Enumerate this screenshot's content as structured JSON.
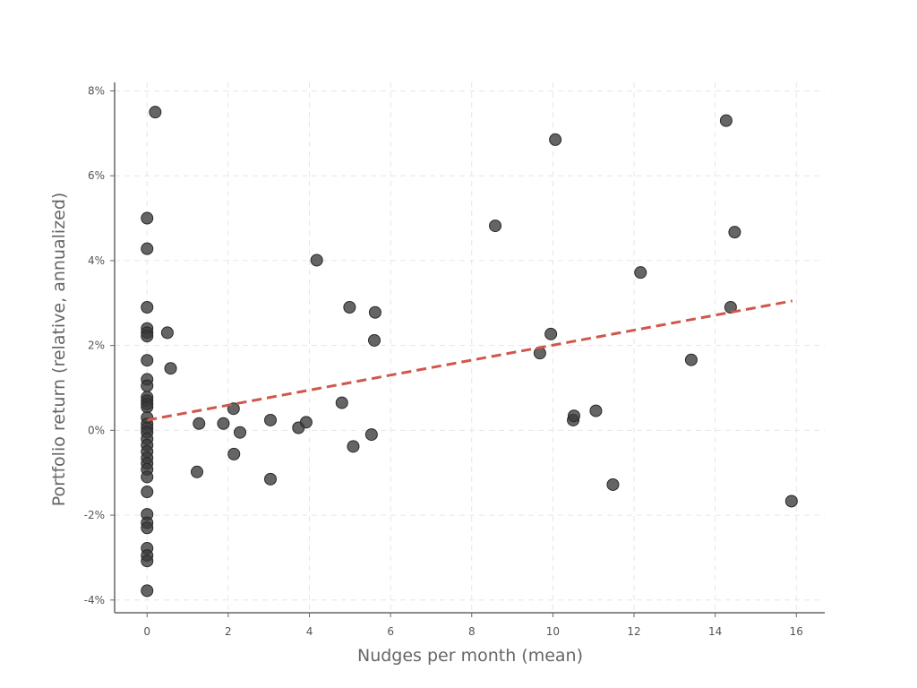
{
  "chart_data": {
    "type": "scatter",
    "xlabel": "Nudges per month (mean)",
    "ylabel": "Portfolio return (relative, annualized)",
    "xlim": [
      -0.8,
      16.7
    ],
    "ylim": [
      -4.3,
      8.2
    ],
    "x_ticks": [
      0,
      2,
      4,
      6,
      8,
      10,
      12,
      14,
      16
    ],
    "x_tick_labels": [
      "0",
      "2",
      "4",
      "6",
      "8",
      "10",
      "12",
      "14",
      "16"
    ],
    "y_ticks": [
      -4,
      -2,
      0,
      2,
      4,
      6,
      8
    ],
    "y_tick_labels": [
      "-4%",
      "-2%",
      "0%",
      "2%",
      "4%",
      "6%",
      "8%"
    ],
    "grid": true,
    "point_color": "#3a3a3a",
    "trend_color": "#d0574c",
    "points": [
      {
        "x": 0.2,
        "y": 7.5
      },
      {
        "x": 0,
        "y": 5.0
      },
      {
        "x": 0,
        "y": 4.28
      },
      {
        "x": 0,
        "y": 2.9
      },
      {
        "x": 0,
        "y": 2.4
      },
      {
        "x": 0,
        "y": 2.3
      },
      {
        "x": 0,
        "y": 2.22
      },
      {
        "x": 0,
        "y": 1.65
      },
      {
        "x": 0,
        "y": 1.2
      },
      {
        "x": 0,
        "y": 1.05
      },
      {
        "x": 0,
        "y": 0.78
      },
      {
        "x": 0,
        "y": 0.7
      },
      {
        "x": 0,
        "y": 0.62
      },
      {
        "x": 0,
        "y": 0.55
      },
      {
        "x": 0,
        "y": 0.3
      },
      {
        "x": 0,
        "y": 0.15
      },
      {
        "x": 0,
        "y": 0.05
      },
      {
        "x": 0,
        "y": -0.05
      },
      {
        "x": 0,
        "y": -0.2
      },
      {
        "x": 0,
        "y": -0.35
      },
      {
        "x": 0,
        "y": -0.5
      },
      {
        "x": 0,
        "y": -0.65
      },
      {
        "x": 0,
        "y": -0.78
      },
      {
        "x": 0,
        "y": -0.92
      },
      {
        "x": 0,
        "y": -1.1
      },
      {
        "x": 0,
        "y": -1.45
      },
      {
        "x": 0,
        "y": -1.98
      },
      {
        "x": 0,
        "y": -2.18
      },
      {
        "x": 0,
        "y": -2.3
      },
      {
        "x": 0,
        "y": -2.78
      },
      {
        "x": 0,
        "y": -2.95
      },
      {
        "x": 0,
        "y": -3.08
      },
      {
        "x": 0,
        "y": -3.78
      },
      {
        "x": 0.5,
        "y": 2.3
      },
      {
        "x": 0.58,
        "y": 1.46
      },
      {
        "x": 1.23,
        "y": -0.98
      },
      {
        "x": 1.28,
        "y": 0.16
      },
      {
        "x": 1.88,
        "y": 0.16
      },
      {
        "x": 2.13,
        "y": 0.51
      },
      {
        "x": 2.14,
        "y": -0.56
      },
      {
        "x": 2.29,
        "y": -0.05
      },
      {
        "x": 3.04,
        "y": 0.24
      },
      {
        "x": 3.04,
        "y": -1.15
      },
      {
        "x": 3.73,
        "y": 0.06
      },
      {
        "x": 3.92,
        "y": 0.19
      },
      {
        "x": 4.18,
        "y": 4.01
      },
      {
        "x": 4.8,
        "y": 0.65
      },
      {
        "x": 4.99,
        "y": 2.9
      },
      {
        "x": 5.08,
        "y": -0.38
      },
      {
        "x": 5.53,
        "y": -0.1
      },
      {
        "x": 5.6,
        "y": 2.12
      },
      {
        "x": 5.62,
        "y": 2.78
      },
      {
        "x": 8.58,
        "y": 4.82
      },
      {
        "x": 9.68,
        "y": 1.82
      },
      {
        "x": 9.95,
        "y": 2.27
      },
      {
        "x": 10.06,
        "y": 6.85
      },
      {
        "x": 10.5,
        "y": 0.24
      },
      {
        "x": 10.52,
        "y": 0.34
      },
      {
        "x": 11.06,
        "y": 0.46
      },
      {
        "x": 11.48,
        "y": -1.28
      },
      {
        "x": 12.16,
        "y": 3.72
      },
      {
        "x": 13.41,
        "y": 1.66
      },
      {
        "x": 14.27,
        "y": 7.3
      },
      {
        "x": 14.38,
        "y": 2.9
      },
      {
        "x": 14.48,
        "y": 4.67
      },
      {
        "x": 15.88,
        "y": -1.67
      }
    ],
    "trendline": {
      "x0": 0,
      "y0": 0.24,
      "x1": 15.9,
      "y1": 3.05
    }
  }
}
